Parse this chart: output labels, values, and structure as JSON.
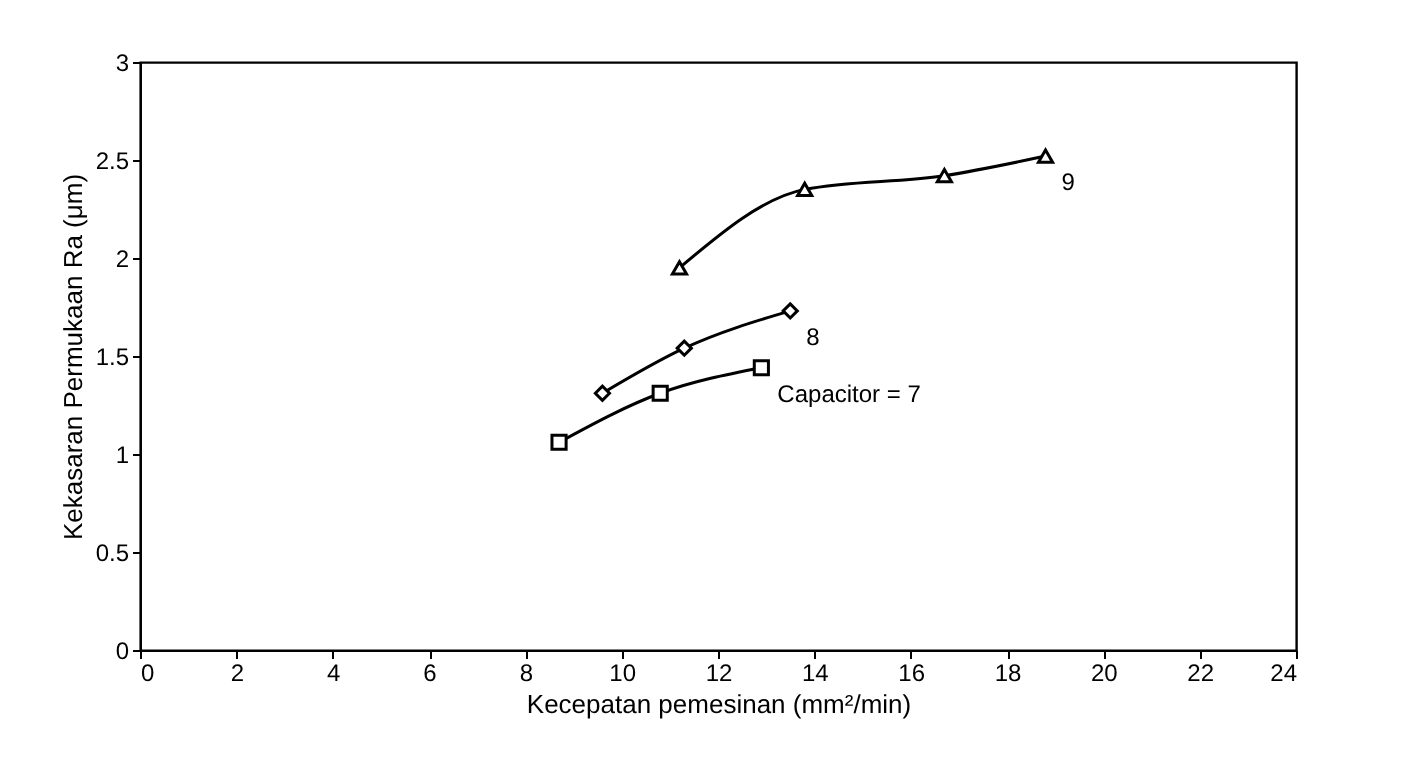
{
  "chart_data": {
    "type": "line",
    "xlabel": "Kecepatan pemesinan (mm²/min)",
    "ylabel": "Kekasaran Permukaan Ra (μm)",
    "xlim": [
      0,
      24
    ],
    "xticks": [
      0,
      2,
      4,
      6,
      8,
      10,
      12,
      14,
      16,
      18,
      20,
      22,
      24
    ],
    "ylim": [
      0,
      3
    ],
    "yticks": [
      0,
      0.5,
      1,
      1.5,
      2,
      2.5,
      3
    ],
    "grid": false,
    "series": [
      {
        "name": "Capacitor = 7",
        "color": "#000000",
        "marker": "square",
        "x": [
          8.7,
          10.8,
          12.9
        ],
        "values": [
          1.06,
          1.31,
          1.44
        ]
      },
      {
        "name": "8",
        "color": "#000000",
        "marker": "diamond",
        "x": [
          9.6,
          11.3,
          13.5
        ],
        "values": [
          1.31,
          1.54,
          1.73
        ]
      },
      {
        "name": "9",
        "color": "#000000",
        "marker": "triangle",
        "x": [
          11.2,
          13.8,
          16.7,
          18.8
        ],
        "values": [
          1.95,
          2.35,
          2.42,
          2.52
        ]
      }
    ]
  }
}
